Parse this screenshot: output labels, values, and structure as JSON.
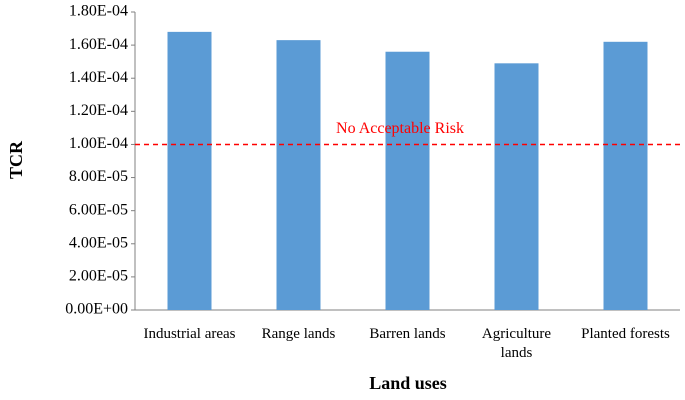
{
  "chart_data": {
    "type": "bar",
    "categories": [
      "Industrial areas",
      "Range lands",
      "Barren lands",
      "Agriculture lands",
      "Planted forests"
    ],
    "values": [
      0.000168,
      0.000163,
      0.000156,
      0.000149,
      0.000162
    ],
    "color": "#5b9bd5",
    "ylim": [
      0,
      0.00018
    ],
    "yticks": [
      {
        "value": 0,
        "label": "0.00E+00"
      },
      {
        "value": 2e-05,
        "label": "2.00E-05"
      },
      {
        "value": 4e-05,
        "label": "4.00E-05"
      },
      {
        "value": 6e-05,
        "label": "6.00E-05"
      },
      {
        "value": 8e-05,
        "label": "8.00E-05"
      },
      {
        "value": 0.0001,
        "label": "1.00E-04"
      },
      {
        "value": 0.00012,
        "label": "1.20E-04"
      },
      {
        "value": 0.00014,
        "label": "1.40E-04"
      },
      {
        "value": 0.00016,
        "label": "1.60E-04"
      },
      {
        "value": 0.00018,
        "label": "1.80E-04"
      }
    ],
    "y_label": "TCR",
    "x_label": "Land uses",
    "grid": false,
    "reference_line": {
      "value": 0.0001,
      "label": "No Acceptable Risk",
      "color": "#ff0000"
    }
  }
}
